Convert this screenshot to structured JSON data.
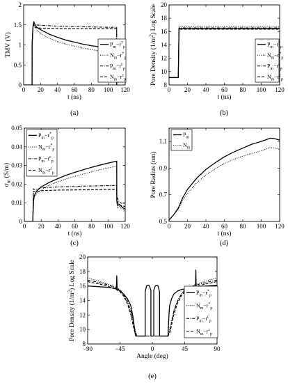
{
  "chart_data": [
    {
      "id": "a",
      "type": "line",
      "caption": "(a)",
      "xlabel": "t (ns)",
      "ylabel": "TMV (V)",
      "xlim": [
        0,
        120
      ],
      "ylim": [
        0,
        2
      ],
      "xticks": [
        "0",
        "20",
        "40",
        "60",
        "80",
        "100",
        "120"
      ],
      "yticks": [
        "0",
        "0.5",
        "1",
        "1.5",
        "2"
      ],
      "xtick_values": [
        0,
        20,
        40,
        60,
        80,
        100,
        120
      ],
      "ytick_values": [
        0,
        0.5,
        1,
        1.5,
        2
      ],
      "legend_position": "right",
      "legend": [
        "P<sub>m</sub>−r<sup>*</sup><sub>p</sub>",
        "N<sub>m</sub>−r<sup>*</sup><sub>p</sub>",
        "P<sub>m</sub>−r<sup>c</sup><sub>p</sub>",
        "N<sub>m</sub>−r<sup>c</sup><sub>p</sub>"
      ],
      "series": [
        {
          "style": "solid",
          "x": [
            0,
            9.9,
            10,
            11,
            12,
            13,
            15,
            20,
            30,
            40,
            50,
            60,
            70,
            80,
            90,
            100,
            109.9,
            110,
            110.5,
            112,
            114,
            117,
            120
          ],
          "y": [
            0,
            0,
            1.0,
            1.45,
            1.58,
            1.52,
            1.45,
            1.38,
            1.27,
            1.19,
            1.12,
            1.07,
            1.02,
            0.98,
            0.95,
            0.92,
            0.89,
            0.0,
            -0.25,
            -0.08,
            -0.04,
            -0.02,
            0
          ]
        },
        {
          "style": "dotted",
          "x": [
            0,
            9.9,
            10,
            11,
            12,
            13,
            15,
            20,
            30,
            40,
            50,
            60,
            70,
            80,
            90,
            100,
            109.9,
            110,
            110.5,
            112,
            114,
            117,
            120
          ],
          "y": [
            0,
            0,
            1.0,
            1.45,
            1.52,
            1.45,
            1.38,
            1.28,
            1.17,
            1.08,
            1.02,
            0.97,
            0.92,
            0.88,
            0.85,
            0.82,
            0.79,
            0.0,
            -0.18,
            -0.05,
            -0.03,
            -0.02,
            0
          ]
        },
        {
          "style": "dashdot",
          "x": [
            0,
            9.9,
            10,
            11,
            12,
            13,
            15,
            20,
            40,
            60,
            80,
            100,
            109.9,
            110,
            110.5,
            112,
            115,
            120
          ],
          "y": [
            0,
            0,
            1.0,
            1.45,
            1.55,
            1.52,
            1.5,
            1.49,
            1.47,
            1.46,
            1.45,
            1.44,
            1.44,
            0.62,
            0.55,
            0.55,
            0.52,
            0.5
          ]
        },
        {
          "style": "dashed",
          "x": [
            0,
            9.9,
            10,
            11,
            12,
            13,
            15,
            20,
            40,
            60,
            80,
            100,
            109.9,
            110,
            110.5,
            112,
            115,
            120
          ],
          "y": [
            0,
            0,
            1.0,
            1.45,
            1.5,
            1.45,
            1.43,
            1.42,
            1.41,
            1.41,
            1.41,
            1.41,
            1.41,
            0.42,
            0.38,
            0.36,
            0.34,
            0.32
          ]
        }
      ]
    },
    {
      "id": "b",
      "type": "line",
      "caption": "(b)",
      "xlabel": "t (ns)",
      "ylabel": "Pore Density (1/m<sup>2</sup>) Log Scale",
      "xlim": [
        0,
        120
      ],
      "ylim": [
        8,
        20
      ],
      "xticks": [
        "0",
        "20",
        "40",
        "60",
        "80",
        "100",
        "120"
      ],
      "yticks": [
        "8",
        "10",
        "12",
        "14",
        "16",
        "18",
        "20"
      ],
      "xtick_values": [
        0,
        20,
        40,
        60,
        80,
        100,
        120
      ],
      "ytick_values": [
        8,
        10,
        12,
        14,
        16,
        18,
        20
      ],
      "legend_position": "right",
      "legend": [
        "P<sub>m</sub>−r<sup>*</sup><sub>p</sub>",
        "N<sub>m</sub>−r<sup>*</sup><sub>p</sub>",
        "P<sub>m</sub>−r<sup>c</sup><sub>p</sub>",
        "N<sub>m</sub>−r<sup>c</sup><sub>p</sub>"
      ],
      "series": [
        {
          "style": "solid",
          "x": [
            0,
            10,
            10.8,
            11.5,
            120
          ],
          "y": [
            9.1,
            9.1,
            16.4,
            16.45,
            16.45
          ]
        },
        {
          "style": "dotted",
          "x": [
            0,
            10,
            10.8,
            11.5,
            120
          ],
          "y": [
            9.1,
            9.1,
            16.7,
            16.75,
            16.75
          ]
        },
        {
          "style": "dashdot",
          "x": [
            0,
            10,
            10.8,
            11.5,
            120
          ],
          "y": [
            9.1,
            9.1,
            16.55,
            16.55,
            16.55
          ]
        },
        {
          "style": "dashed",
          "x": [
            0,
            10,
            10.8,
            11.5,
            120
          ],
          "y": [
            9.1,
            9.1,
            16.35,
            16.35,
            16.35
          ]
        }
      ]
    },
    {
      "id": "c",
      "type": "line",
      "caption": "(c)",
      "xlabel": "t (ns)",
      "ylabel": "σ<sub>m</sub> (S/m)",
      "xlim": [
        0,
        120
      ],
      "ylim": [
        0,
        0.05
      ],
      "xticks": [
        "0",
        "20",
        "40",
        "60",
        "80",
        "100",
        "120"
      ],
      "yticks": [
        "0",
        "0.01",
        "0.02",
        "0.03",
        "0.04",
        "0.05"
      ],
      "xtick_values": [
        0,
        20,
        40,
        60,
        80,
        100,
        120
      ],
      "ytick_values": [
        0,
        0.01,
        0.02,
        0.03,
        0.04,
        0.05
      ],
      "legend_position": "top-left",
      "legend": [
        "P<sub>m</sub>−r<sup>*</sup><sub>p</sub>",
        "N<sub>m</sub>−r<sup>*</sup><sub>p</sub>",
        "P<sub>m</sub>−r<sup>c</sup><sub>p</sub>",
        "N<sub>m</sub>−r<sup>c</sup><sub>p</sub>"
      ],
      "series": [
        {
          "style": "solid",
          "x": [
            0,
            10,
            11,
            12,
            15,
            20,
            30,
            40,
            50,
            60,
            70,
            80,
            90,
            100,
            109.9,
            110,
            111,
            113,
            116,
            120
          ],
          "y": [
            0,
            0,
            0.012,
            0.014,
            0.0165,
            0.0185,
            0.021,
            0.023,
            0.0248,
            0.0263,
            0.0277,
            0.029,
            0.0302,
            0.0313,
            0.0323,
            0.011,
            0.0085,
            0.0092,
            0.0078,
            0.0065
          ]
        },
        {
          "style": "dotted",
          "x": [
            0,
            10,
            11,
            12,
            15,
            20,
            30,
            40,
            50,
            60,
            70,
            80,
            90,
            100,
            109.9,
            110,
            111,
            113,
            116,
            120
          ],
          "y": [
            0,
            0,
            0.011,
            0.013,
            0.015,
            0.017,
            0.0195,
            0.0213,
            0.0228,
            0.0242,
            0.0254,
            0.0266,
            0.0277,
            0.0287,
            0.0296,
            0.0095,
            0.0072,
            0.0082,
            0.0068,
            0.0055
          ]
        },
        {
          "style": "dashdot",
          "x": [
            0,
            10,
            10.8,
            12,
            15,
            20,
            40,
            60,
            80,
            100,
            109.9,
            110,
            112,
            115,
            120
          ],
          "y": [
            0,
            0,
            0.0175,
            0.0172,
            0.0172,
            0.018,
            0.0185,
            0.0188,
            0.019,
            0.0192,
            0.0193,
            0.0135,
            0.011,
            0.0098,
            0.0095
          ]
        },
        {
          "style": "dashed",
          "x": [
            0,
            10,
            10.8,
            12,
            15,
            20,
            40,
            60,
            80,
            100,
            109.9,
            110,
            112,
            115,
            120
          ],
          "y": [
            0,
            0,
            0.016,
            0.016,
            0.016,
            0.0165,
            0.0168,
            0.0169,
            0.017,
            0.0171,
            0.0172,
            0.0115,
            0.0095,
            0.0085,
            0.008
          ]
        }
      ]
    },
    {
      "id": "d",
      "type": "line",
      "caption": "(d)",
      "xlabel": "t (ns)",
      "ylabel": "Pore Radius (nm)",
      "xlim": [
        0,
        120
      ],
      "ylim": [
        0.5,
        1.2
      ],
      "xticks": [
        "0",
        "20",
        "40",
        "60",
        "80",
        "100",
        "120"
      ],
      "yticks": [
        "0.5",
        "0.7",
        "0.9",
        "1.1"
      ],
      "xtick_values": [
        0,
        20,
        40,
        60,
        80,
        100,
        120
      ],
      "ytick_values": [
        0.5,
        0.7,
        0.9,
        1.1
      ],
      "legend_position": "top-left",
      "legend": [
        "P<sub>m</sub>",
        "N<sub>m</sub>"
      ],
      "series": [
        {
          "style": "solid",
          "x": [
            0,
            5,
            10,
            15,
            20,
            30,
            40,
            50,
            60,
            70,
            80,
            90,
            100,
            110,
            115,
            120
          ],
          "y": [
            0.51,
            0.55,
            0.6,
            0.68,
            0.74,
            0.825,
            0.89,
            0.94,
            0.985,
            1.02,
            1.05,
            1.08,
            1.1,
            1.125,
            1.12,
            1.11
          ]
        },
        {
          "style": "dotted",
          "x": [
            0,
            5,
            10,
            15,
            20,
            30,
            40,
            50,
            60,
            70,
            80,
            90,
            100,
            110,
            115,
            120
          ],
          "y": [
            0.51,
            0.55,
            0.59,
            0.66,
            0.71,
            0.79,
            0.85,
            0.895,
            0.935,
            0.965,
            0.99,
            1.01,
            1.03,
            1.055,
            1.05,
            1.04
          ]
        }
      ]
    },
    {
      "id": "e",
      "type": "line",
      "caption": "(e)",
      "xlabel": "Angle (deg)",
      "ylabel": "Pore Density (1/m<sup>2</sup>) Log Scale",
      "xlim": [
        -90,
        90
      ],
      "ylim": [
        8,
        20
      ],
      "xticks": [
        "−90",
        "−45",
        "0",
        "45",
        "90"
      ],
      "yticks": [
        "8",
        "10",
        "12",
        "14",
        "16",
        "18",
        "20"
      ],
      "xtick_values": [
        -90,
        -45,
        0,
        45,
        90
      ],
      "ytick_values": [
        8,
        10,
        12,
        14,
        16,
        18,
        20
      ],
      "legend_position": "right",
      "legend": [
        "P<sub>m</sub>−r<sup>*</sup><sub>p</sub>",
        "N<sub>m</sub>−r<sup>*</sup><sub>p</sub>",
        "P<sub>m</sub>−r<sup>c</sup><sub>p</sub>",
        "N<sub>m</sub>−r<sup>c</sup><sub>p</sub>"
      ],
      "series": [
        {
          "style": "solid",
          "x": [
            -90,
            -75,
            -60,
            -55,
            -50,
            -49.5,
            -49,
            -45,
            -40,
            -35,
            -30,
            -27,
            -24,
            -23,
            -22,
            -22,
            -10,
            -10,
            -8,
            -6,
            -4,
            -2,
            -2,
            2,
            2,
            4,
            6,
            8,
            10,
            10,
            22,
            22,
            23,
            24,
            27,
            30,
            35,
            40,
            45,
            55,
            60,
            60.5,
            61,
            65,
            75,
            90
          ],
          "y": [
            16,
            15.9,
            15.8,
            15.7,
            15.6,
            17.4,
            15.6,
            15.3,
            14.9,
            14.3,
            13.3,
            11.8,
            9.5,
            9.1,
            9.1,
            9.1,
            9.1,
            15.2,
            16.0,
            16.1,
            16.0,
            15.4,
            9.1,
            9.1,
            15.4,
            16.0,
            16.1,
            16.0,
            15.2,
            9.1,
            9.1,
            9.5,
            11.8,
            13.3,
            14.3,
            14.9,
            15.3,
            15.5,
            15.6,
            15.7,
            15.8,
            18.2,
            15.8,
            15.9,
            16.0,
            16.1
          ]
        },
        {
          "style": "dotted",
          "x": [
            -90,
            -75,
            -60,
            -50,
            -45,
            -40,
            -35,
            -30,
            -25,
            -22,
            -20,
            -20,
            20,
            20,
            22,
            25,
            30,
            35,
            40,
            45,
            50,
            60,
            75,
            90
          ],
          "y": [
            17.1,
            16.7,
            16.2,
            15.8,
            15.5,
            14.9,
            14.0,
            12.7,
            10.4,
            9.2,
            9.1,
            9.1,
            9.1,
            9.1,
            9.2,
            10.4,
            12.7,
            14.0,
            14.9,
            15.5,
            15.8,
            16.2,
            16.7,
            17.1
          ]
        },
        {
          "style": "dashdot",
          "x": [
            -90,
            -75,
            -60,
            -50,
            -45,
            -40,
            -35,
            -30,
            -25,
            -22,
            -20,
            -20,
            20,
            20,
            22,
            25,
            30,
            35,
            40,
            45,
            50,
            60,
            75,
            90
          ],
          "y": [
            16.8,
            16.5,
            16.1,
            15.7,
            15.4,
            14.8,
            13.9,
            12.5,
            10.2,
            9.2,
            9.1,
            9.1,
            9.1,
            9.1,
            9.2,
            10.2,
            12.5,
            13.9,
            14.8,
            15.4,
            15.7,
            16.1,
            16.5,
            16.8
          ]
        },
        {
          "style": "dashed",
          "x": [
            -90,
            -75,
            -60,
            -50,
            -45,
            -40,
            -35,
            -30,
            -25,
            -22,
            -20,
            -20,
            20,
            20,
            22,
            25,
            30,
            35,
            40,
            45,
            50,
            60,
            75,
            90
          ],
          "y": [
            16.6,
            16.3,
            15.9,
            15.5,
            15.2,
            14.6,
            13.6,
            12.1,
            9.8,
            9.1,
            9.1,
            9.1,
            9.1,
            9.1,
            9.1,
            9.8,
            12.1,
            13.6,
            14.6,
            15.2,
            15.5,
            15.9,
            16.3,
            16.6
          ]
        }
      ]
    }
  ]
}
